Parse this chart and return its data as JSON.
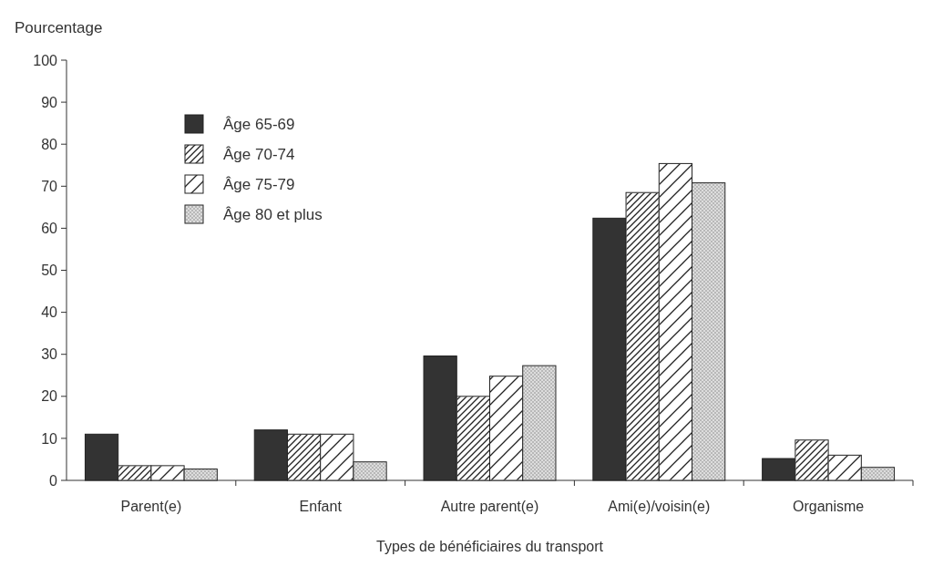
{
  "chart_data": {
    "type": "bar",
    "ylabel": "Pourcentage",
    "xlabel": "Types de bénéficiaires du transport",
    "categories": [
      "Parent(e)",
      "Enfant",
      "Autre parent(e)",
      "Ami(e)/voisin(e)",
      "Organisme"
    ],
    "series": [
      {
        "name": "Âge 65-69",
        "color": "#333333",
        "values": [
          11,
          12,
          29.6,
          62.4,
          5.2
        ]
      },
      {
        "name": "Âge 70-74",
        "color": "#ffffff",
        "values": [
          3.5,
          11,
          20,
          68.5,
          9.6
        ]
      },
      {
        "name": "Âge 75-79",
        "color": "#ffffff",
        "values": [
          3.5,
          11,
          24.8,
          75.4,
          6
        ]
      },
      {
        "name": "Âge 80 et plus",
        "color": "#dddddd",
        "values": [
          2.7,
          4.4,
          27.3,
          70.8,
          3.1
        ]
      }
    ],
    "ylim": [
      0,
      100
    ],
    "yticks": [
      0,
      10,
      20,
      30,
      40,
      50,
      60,
      70,
      80,
      90,
      100
    ],
    "legend": "top left"
  }
}
